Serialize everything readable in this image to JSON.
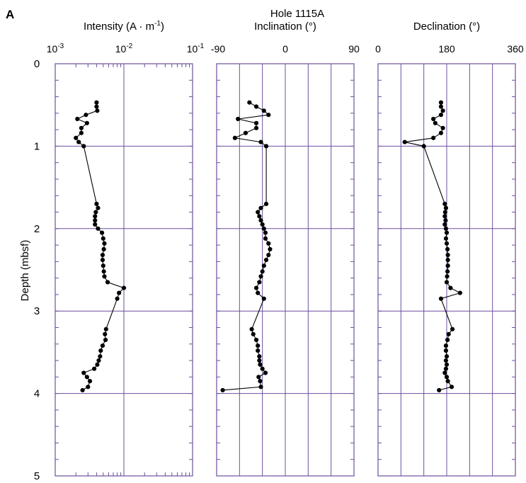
{
  "figure": {
    "panel_letter": "A",
    "hole_label": "Hole  1115A",
    "y_axis_label": "Depth (mbsf)"
  },
  "chart_data": [
    {
      "type": "line",
      "name": "intensity",
      "title": "Intensity (A · m",
      "title_sup": "-1",
      "title_end": ")",
      "xscale": "log",
      "xlim": [
        0.001,
        0.1
      ],
      "x_ticks": [
        {
          "base": "10",
          "exp": "-3"
        },
        {
          "base": "10",
          "exp": "-2"
        },
        {
          "base": "10",
          "exp": "-1"
        }
      ],
      "ylim": [
        0,
        5
      ],
      "y_ticks": [
        "0",
        "1",
        "2",
        "3",
        "4",
        "5"
      ],
      "y_inverted": true,
      "grid": true,
      "series": [
        {
          "depth": [
            0.47,
            0.52,
            0.57,
            0.62,
            0.67,
            0.72,
            0.78,
            0.84,
            0.9,
            0.95,
            1.0,
            1.7,
            1.75,
            1.8,
            1.85,
            1.9,
            1.95,
            2.0,
            2.05,
            2.12,
            2.18,
            2.25,
            2.32,
            2.38,
            2.45,
            2.52,
            2.58,
            2.65,
            2.72,
            2.78,
            2.85,
            3.22,
            3.28,
            3.35,
            3.42,
            3.48,
            3.55,
            3.6,
            3.65,
            3.7,
            3.75,
            3.8,
            3.85,
            3.92,
            3.96
          ],
          "x": [
            0.004,
            0.004,
            0.0041,
            0.0028,
            0.0021,
            0.0029,
            0.0024,
            0.0024,
            0.002,
            0.0022,
            0.0026,
            0.004,
            0.0042,
            0.0039,
            0.0038,
            0.0038,
            0.0038,
            0.0042,
            0.0048,
            0.005,
            0.0052,
            0.0051,
            0.0049,
            0.0049,
            0.005,
            0.0051,
            0.0052,
            0.0058,
            0.01,
            0.0085,
            0.008,
            0.0055,
            0.0053,
            0.0054,
            0.0049,
            0.0046,
            0.0045,
            0.0043,
            0.0041,
            0.0037,
            0.0026,
            0.0029,
            0.0032,
            0.003,
            0.0025
          ]
        }
      ]
    },
    {
      "type": "line",
      "name": "inclination",
      "title": "Inclination  (°)",
      "xscale": "linear",
      "xlim": [
        -90,
        90
      ],
      "x_ticks": [
        "-90",
        "0",
        "90"
      ],
      "ylim": [
        0,
        5
      ],
      "y_inverted": true,
      "grid": true,
      "series": [
        {
          "depth": [
            0.47,
            0.52,
            0.57,
            0.62,
            0.67,
            0.72,
            0.78,
            0.84,
            0.9,
            0.95,
            1.0,
            1.7,
            1.75,
            1.8,
            1.85,
            1.9,
            1.95,
            2.0,
            2.05,
            2.12,
            2.18,
            2.25,
            2.32,
            2.38,
            2.45,
            2.52,
            2.58,
            2.65,
            2.72,
            2.78,
            2.85,
            3.22,
            3.28,
            3.35,
            3.42,
            3.48,
            3.55,
            3.6,
            3.65,
            3.7,
            3.75,
            3.8,
            3.85,
            3.92,
            3.96
          ],
          "x": [
            -47,
            -38,
            -28,
            -22,
            -62,
            -38,
            -38,
            -52,
            -66,
            -32,
            -25,
            -25,
            -32,
            -36,
            -34,
            -32,
            -30,
            -28,
            -26,
            -26,
            -22,
            -20,
            -22,
            -25,
            -28,
            -30,
            -32,
            -34,
            -38,
            -36,
            -28,
            -44,
            -42,
            -38,
            -36,
            -36,
            -34,
            -34,
            -33,
            -30,
            -26,
            -35,
            -33,
            -32,
            -82
          ]
        }
      ]
    },
    {
      "type": "line",
      "name": "declination",
      "title": "Declination  (°)",
      "xscale": "linear",
      "xlim": [
        0,
        360
      ],
      "x_ticks": [
        "0",
        "180",
        "360"
      ],
      "ylim": [
        0,
        5
      ],
      "y_inverted": true,
      "grid": true,
      "series": [
        {
          "depth": [
            0.47,
            0.52,
            0.57,
            0.62,
            0.67,
            0.72,
            0.78,
            0.84,
            0.9,
            0.95,
            1.0,
            1.7,
            1.75,
            1.8,
            1.85,
            1.9,
            1.95,
            2.0,
            2.05,
            2.12,
            2.18,
            2.25,
            2.32,
            2.38,
            2.45,
            2.52,
            2.58,
            2.65,
            2.72,
            2.78,
            2.85,
            3.22,
            3.28,
            3.35,
            3.42,
            3.48,
            3.55,
            3.6,
            3.65,
            3.7,
            3.75,
            3.8,
            3.85,
            3.92,
            3.96
          ],
          "x": [
            165,
            165,
            170,
            165,
            145,
            150,
            170,
            165,
            145,
            70,
            120,
            175,
            178,
            176,
            175,
            177,
            175,
            178,
            180,
            178,
            180,
            182,
            183,
            183,
            183,
            182,
            181,
            180,
            190,
            215,
            165,
            195,
            185,
            182,
            178,
            178,
            180,
            178,
            180,
            178,
            175,
            180,
            183,
            193,
            160
          ]
        }
      ]
    }
  ]
}
